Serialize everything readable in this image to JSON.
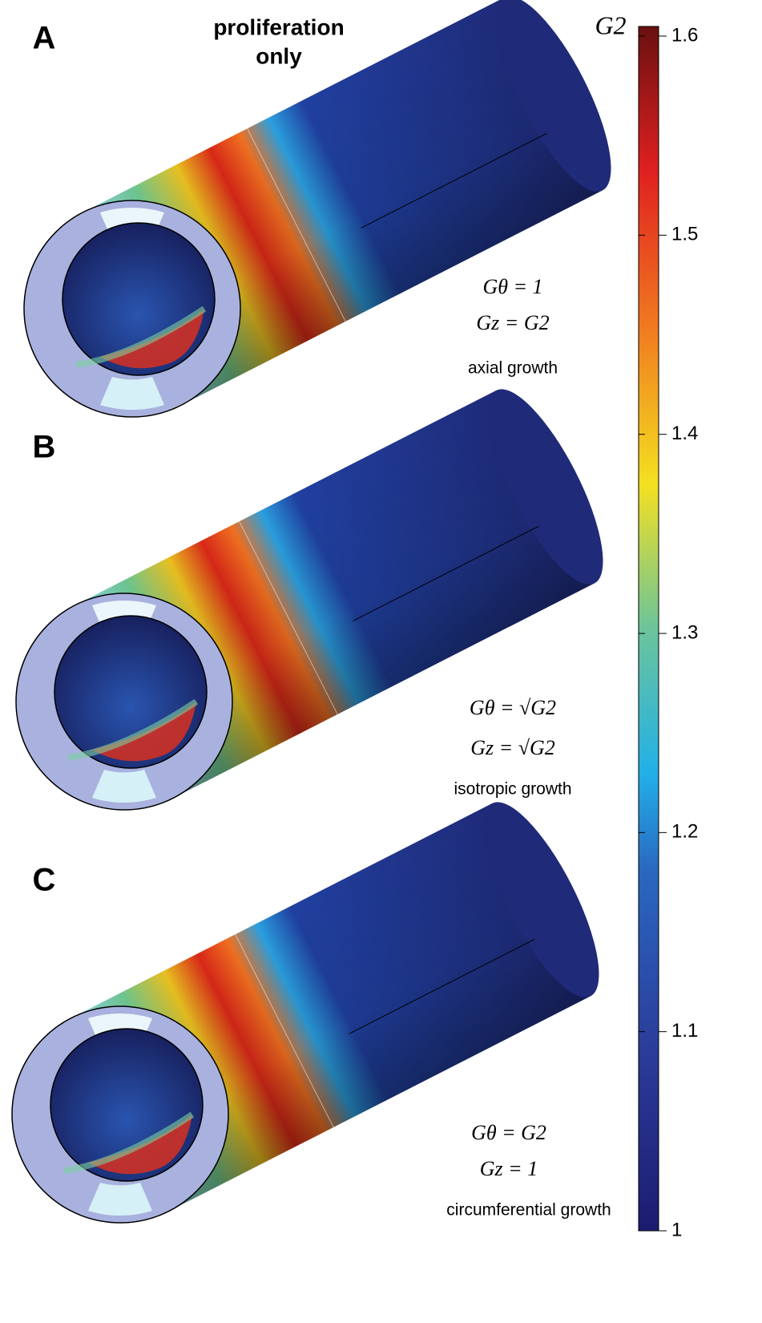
{
  "title": [
    "proliferation",
    "only"
  ],
  "panels": [
    {
      "label": "A",
      "equations": [
        "Gθ = 1",
        "Gz = G2"
      ],
      "caption": "axial growth"
    },
    {
      "label": "B",
      "equations": [
        "Gθ = √G2",
        "Gz = √G2"
      ],
      "caption": "isotropic growth"
    },
    {
      "label": "C",
      "equations": [
        "Gθ = G2",
        "Gz = 1"
      ],
      "caption": "circumferential growth"
    }
  ],
  "colorbar": {
    "title": "G2",
    "range": [
      1,
      1.6
    ],
    "ticks": [
      1,
      1.1,
      1.2,
      1.3,
      1.4,
      1.5,
      1.6
    ]
  }
}
